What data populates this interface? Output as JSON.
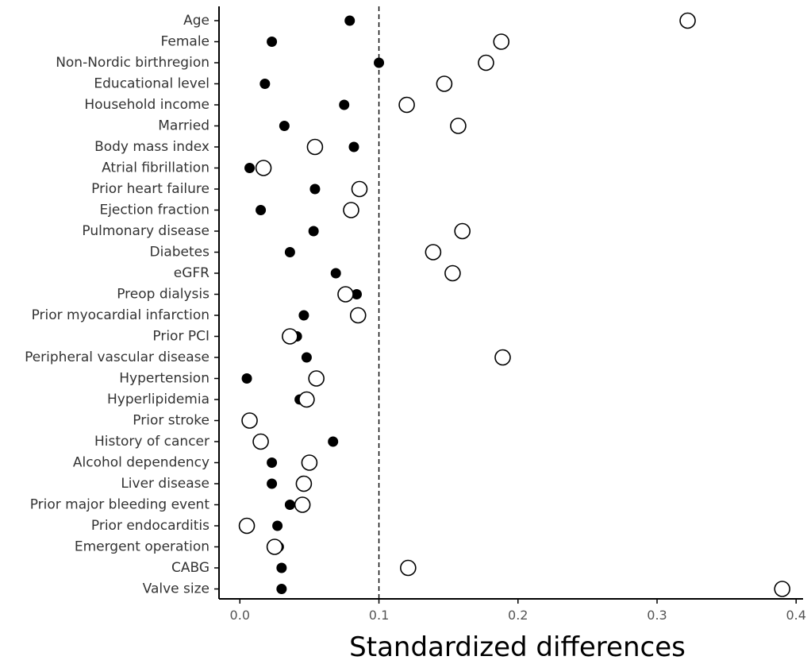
{
  "chart_data": {
    "type": "scatter",
    "xlabel": "Standardized differences",
    "ylabel": "",
    "xlim": [
      -0.015,
      0.405
    ],
    "xticks": [
      0.0,
      0.1,
      0.2,
      0.3,
      0.4
    ],
    "xtick_labels": [
      "0.0",
      "0.1",
      "0.2",
      "0.3",
      "0.4"
    ],
    "reference_line": 0.1,
    "grid": false,
    "categories": [
      "Age",
      "Female",
      "Non-Nordic birthregion",
      "Educational level",
      "Household income",
      "Married",
      "Body mass index",
      "Atrial fibrillation",
      "Prior heart failure",
      "Ejection fraction",
      "Pulmonary disease",
      "Diabetes",
      "eGFR",
      "Preop dialysis",
      "Prior myocardial infarction",
      "Prior PCI",
      "Peripheral vascular disease",
      "Hypertension",
      "Hyperlipidemia",
      "Prior stroke",
      "History of cancer",
      "Alcohol dependency",
      "Liver disease",
      "Prior major bleeding event",
      "Prior endocarditis",
      "Emergent operation",
      "CABG",
      "Valve size"
    ],
    "series": [
      {
        "marker": "filled-circle",
        "color": "#000000",
        "values": [
          0.079,
          0.023,
          0.1,
          0.018,
          0.075,
          0.032,
          0.082,
          0.007,
          0.054,
          0.015,
          0.053,
          0.036,
          0.069,
          0.084,
          0.046,
          0.041,
          0.048,
          0.005,
          0.043,
          0.008,
          0.067,
          0.023,
          0.023,
          0.036,
          0.027,
          0.028,
          0.03,
          0.03
        ]
      },
      {
        "marker": "open-circle",
        "color": "#000000",
        "values": [
          0.322,
          0.188,
          0.177,
          0.147,
          0.12,
          0.157,
          0.054,
          0.017,
          0.086,
          0.08,
          0.16,
          0.139,
          0.153,
          0.076,
          0.085,
          0.036,
          0.189,
          0.055,
          0.048,
          0.007,
          0.015,
          0.05,
          0.046,
          0.045,
          0.005,
          0.025,
          0.121,
          0.39
        ]
      }
    ]
  }
}
